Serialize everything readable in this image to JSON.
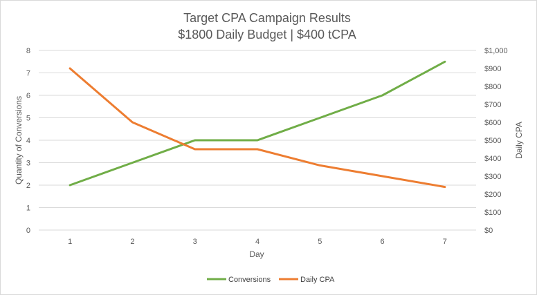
{
  "chart_data": {
    "type": "line",
    "title_line1": "Target CPA Campaign Results",
    "title_line2": "$1800 Daily Budget | $400 tCPA",
    "xlabel": "Day",
    "ylabel_left": "Quantity of Conversions",
    "ylabel_right": "Daily CPA",
    "x": [
      1,
      2,
      3,
      4,
      5,
      6,
      7
    ],
    "x_tick_labels": [
      "1",
      "2",
      "3",
      "4",
      "5",
      "6",
      "7"
    ],
    "ylim_left": [
      0,
      8
    ],
    "ylim_right": [
      0,
      1000
    ],
    "y_left_ticks": [
      "0",
      "1",
      "2",
      "3",
      "4",
      "5",
      "6",
      "7",
      "8"
    ],
    "y_right_ticks": [
      "$0",
      "$100",
      "$200",
      "$300",
      "$400",
      "$500",
      "$600",
      "$700",
      "$800",
      "$900",
      "$1,000"
    ],
    "grid": true,
    "legend_position": "bottom",
    "series": [
      {
        "name": "Conversions",
        "axis": "left",
        "color": "#70ad47",
        "values": [
          2,
          3,
          4,
          4,
          5,
          6,
          7.5
        ]
      },
      {
        "name": "Daily CPA",
        "axis": "right",
        "color": "#ed7d31",
        "values": [
          900,
          600,
          450,
          450,
          360,
          300,
          240
        ]
      }
    ]
  }
}
